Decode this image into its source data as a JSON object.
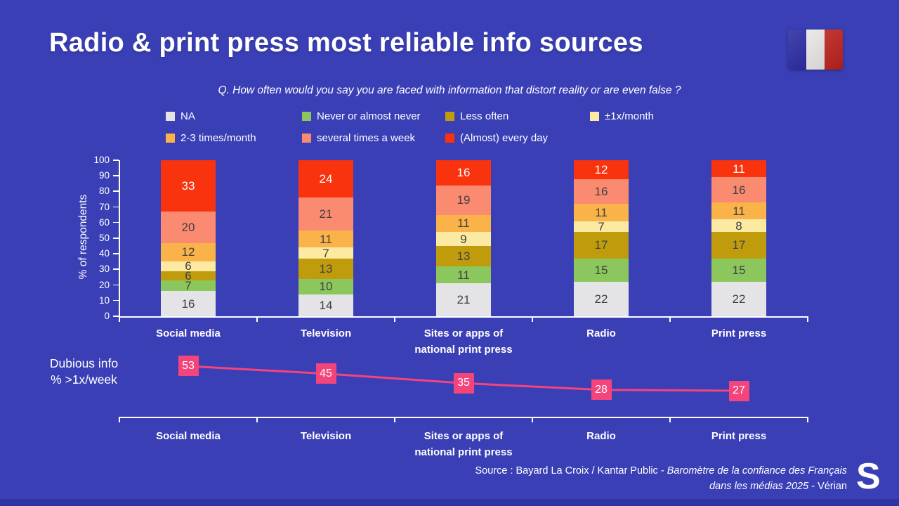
{
  "title": "Radio & print press most reliable info sources",
  "question": "Q. How often would you say you are faced with information that distort reality or are  even false ?",
  "flag": {
    "blue": "#1c1c9e",
    "white": "#f0efed",
    "red": "#c8231f"
  },
  "legend": [
    {
      "label": "NA",
      "color": "#e4e4e6"
    },
    {
      "label": "Never or almost never",
      "color": "#8bc75c"
    },
    {
      "label": "Less often",
      "color": "#c09c0d"
    },
    {
      "label": "±1x/month",
      "color": "#fce9a2"
    },
    {
      "label": "2-3 times/month",
      "color": "#fab348"
    },
    {
      "label": "several times a week",
      "color": "#fa8a70"
    },
    {
      "label": "(Almost) every day",
      "color": "#f8330e"
    }
  ],
  "chart_data": [
    {
      "type": "bar",
      "stacked": true,
      "ylabel": "% of respondents",
      "ylim": [
        0,
        100
      ],
      "ytick_step": 10,
      "grid": false,
      "legend_position": "top",
      "categories": [
        "Social media",
        "Television",
        "Sites or apps of\nnational print press",
        "Radio",
        "Print press"
      ],
      "series": [
        {
          "name": "NA",
          "color": "#e4e4e6",
          "label_color": "#414141",
          "values": [
            16,
            14,
            21,
            22,
            22
          ]
        },
        {
          "name": "Never or almost never",
          "color": "#8bc75c",
          "label_color": "#414141",
          "values": [
            7,
            10,
            11,
            15,
            15
          ]
        },
        {
          "name": "Less often",
          "color": "#c09c0d",
          "label_color": "#414141",
          "values": [
            6,
            13,
            13,
            17,
            17
          ]
        },
        {
          "name": "±1x/month",
          "color": "#fce9a2",
          "label_color": "#414141",
          "values": [
            6,
            7,
            9,
            7,
            8
          ]
        },
        {
          "name": "2-3 times/month",
          "color": "#fab348",
          "label_color": "#414141",
          "values": [
            12,
            11,
            11,
            11,
            11
          ]
        },
        {
          "name": "several times a week",
          "color": "#fa8a70",
          "label_color": "#414141",
          "values": [
            20,
            21,
            19,
            16,
            16
          ]
        },
        {
          "name": "(Almost) every day",
          "color": "#f8330e",
          "label_color": "#ffffff",
          "values": [
            33,
            24,
            16,
            12,
            11
          ]
        }
      ]
    },
    {
      "type": "line",
      "name": "Dubious info % >1x/week",
      "categories": [
        "Social media",
        "Television",
        "Sites or apps of\nnational print press",
        "Radio",
        "Print press"
      ],
      "values": [
        53,
        45,
        35,
        28,
        27
      ],
      "color": "#f4447c",
      "marker": "square",
      "marker_label_color": "#ffffff"
    }
  ],
  "dubious_label": {
    "line1": "Dubious info",
    "line2": "% >1x/week"
  },
  "source": {
    "line1_normal": "Source : Bayard La Croix / Kantar Public - ",
    "line1_italic": "Baromètre de la confiance des Français",
    "line2_italic": "dans les médias 2025",
    "line2_normal": " - Vérian"
  },
  "logo_letter": "S"
}
